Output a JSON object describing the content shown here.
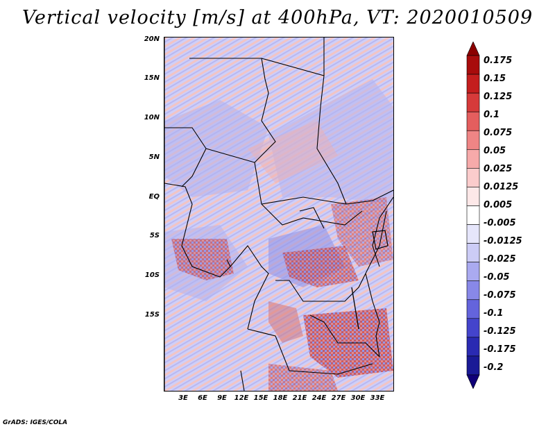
{
  "title": "Vertical velocity [m/s] at 400hPa, VT: 2020010509",
  "credit": "GrADS: IGES/COLA",
  "lat_labels": [
    "20N",
    "15N",
    "10N",
    "5N",
    "EQ",
    "5S",
    "10S",
    "15S"
  ],
  "lon_labels": [
    "3E",
    "6E",
    "9E",
    "12E",
    "15E",
    "18E",
    "21E",
    "24E",
    "27E",
    "30E",
    "33E"
  ],
  "colorbar": {
    "labels": [
      "0.175",
      "0.15",
      "0.125",
      "0.1",
      "0.075",
      "0.05",
      "0.025",
      "0.0125",
      "0.005",
      "-0.005",
      "-0.0125",
      "-0.025",
      "-0.05",
      "-0.075",
      "-0.1",
      "-0.125",
      "-0.175",
      "-0.2"
    ],
    "colors": [
      "#8b0000",
      "#a80c0c",
      "#c41e1e",
      "#d63a3a",
      "#e45e5e",
      "#ef8585",
      "#f6aaaa",
      "#fbcccc",
      "#fde8e8",
      "#ffffff",
      "#e6e6fb",
      "#ccccf6",
      "#aaaaf0",
      "#8888e8",
      "#6464dc",
      "#4444cc",
      "#2a2ab2",
      "#1a1a96",
      "#100078"
    ]
  }
}
